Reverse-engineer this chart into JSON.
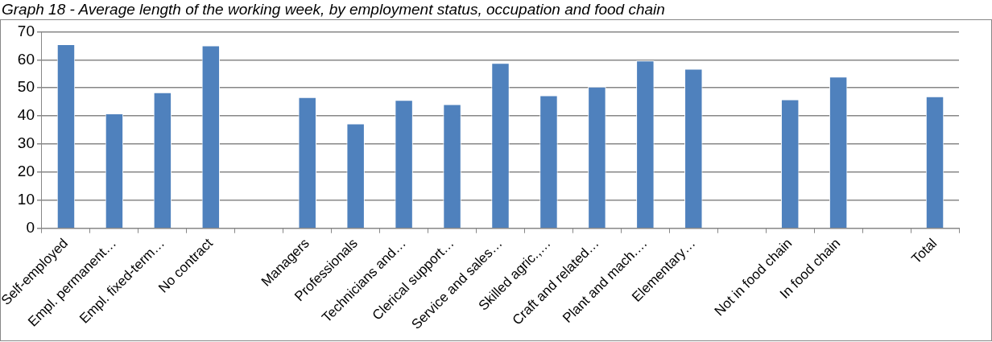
{
  "chart_data": {
    "type": "bar",
    "title": "Graph 18 - Average length of the working week, by employment status, occupation and food chain",
    "categories": [
      "Self-employed",
      "Empl. permanent…",
      "Empl. fixed-term…",
      "No contract",
      null,
      "Managers",
      "Professionals",
      "Technicians and…",
      "Clerical support…",
      "Service and sales…",
      "Skilled agric.,…",
      "Craft and related…",
      "Plant and mach.…",
      "Elementary…",
      null,
      "Not in food chain",
      "In food chain",
      null,
      "Total"
    ],
    "values": [
      65.5,
      40.9,
      48.4,
      65.1,
      null,
      46.7,
      37.3,
      45.7,
      44.2,
      58.9,
      47.3,
      50.4,
      59.7,
      56.8,
      null,
      45.9,
      54.0,
      null,
      47.0
    ],
    "color": "#4f81bd",
    "ylim": [
      0,
      70
    ],
    "yticks": [
      0,
      10,
      20,
      30,
      40,
      50,
      60,
      70
    ],
    "grid": "y"
  }
}
